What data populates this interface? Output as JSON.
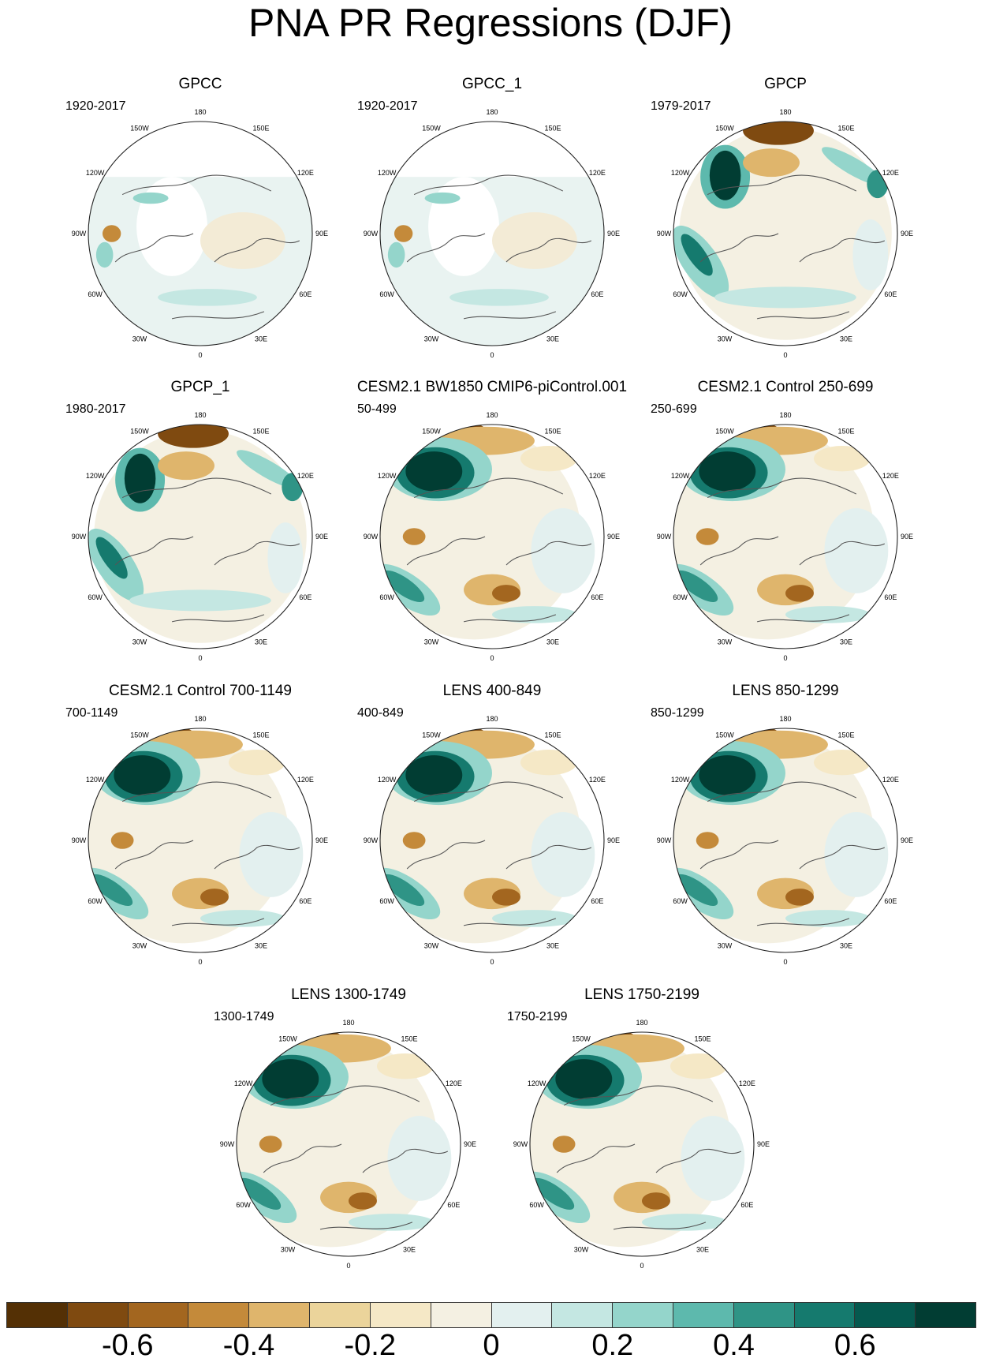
{
  "figure": {
    "title": "PNA PR Regressions (DJF)"
  },
  "lon_labels": [
    "180",
    "150E",
    "120E",
    "90E",
    "60E",
    "30E",
    "0",
    "30W",
    "60W",
    "90W",
    "120W",
    "150W"
  ],
  "panels": [
    {
      "title": "GPCC",
      "period": "1920-2017",
      "style": "obs-land"
    },
    {
      "title": "GPCC_1",
      "period": "1920-2017",
      "style": "obs-land"
    },
    {
      "title": "GPCP",
      "period": "1979-2017",
      "style": "obs-global"
    },
    {
      "title": "GPCP_1",
      "period": "1980-2017",
      "style": "obs-global"
    },
    {
      "title": "CESM2.1 BW1850 CMIP6-piControl.001",
      "period": "50-499",
      "style": "model"
    },
    {
      "title": "CESM2.1 Control 250-699",
      "period": "250-699",
      "style": "model"
    },
    {
      "title": "CESM2.1 Control 700-1149",
      "period": "700-1149",
      "style": "model"
    },
    {
      "title": "LENS 400-849",
      "period": "400-849",
      "style": "model"
    },
    {
      "title": "LENS 850-1299",
      "period": "850-1299",
      "style": "model"
    },
    {
      "title": "LENS 1300-1749",
      "period": "1300-1749",
      "style": "model"
    },
    {
      "title": "LENS 1750-2199",
      "period": "1750-2199",
      "style": "model"
    }
  ],
  "colorbar": {
    "colors": [
      "#543005",
      "#7f4a10",
      "#a3661f",
      "#c48a3a",
      "#dfb56c",
      "#ebd49b",
      "#f5e8c6",
      "#f4f0e2",
      "#e3f0ef",
      "#c4e7e2",
      "#94d5cb",
      "#5db9ad",
      "#2f9486",
      "#157a6e",
      "#05594f",
      "#013d33"
    ],
    "tick_labels": [
      "-0.6",
      "-0.4",
      "-0.2",
      "0",
      "0.2",
      "0.4",
      "0.6"
    ],
    "tick_values": [
      -0.6,
      -0.4,
      -0.2,
      0,
      0.2,
      0.4,
      0.6
    ],
    "range": [
      -0.8,
      0.8
    ]
  }
}
